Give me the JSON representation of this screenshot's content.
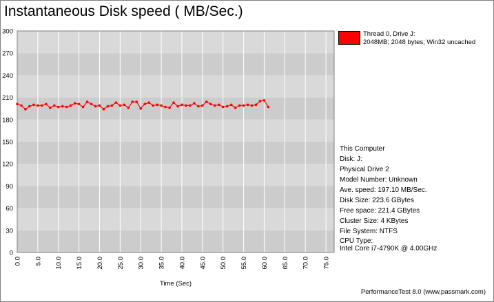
{
  "header": {
    "title": "Instantaneous Disk speed ( MB/Sec.)"
  },
  "legend": {
    "swatch_color": "#ff0000",
    "line1": "Thread 0, Drive J:",
    "line2": "2048MB; 2048 bytes; Win32 uncached"
  },
  "info": {
    "computer": "This Computer",
    "disk": "Disk: J:",
    "physical_drive": "Physical Drive 2",
    "model_number": "Model Number: Unknown",
    "ave_speed": "Ave. speed: 197.10 MB/Sec.",
    "disk_size": "Disk Size: 223.6 GBytes",
    "free_space": "Free space: 221.4 GBytes",
    "cluster_size": "Cluster Size: 4 KBytes",
    "file_system": "File System: NTFS",
    "cpu_type_label": "CPU Type:",
    "cpu_type_value": "Intel Core i7-4790K @ 4.00GHz"
  },
  "footer": {
    "text": "PerformanceTest 8.0 (www.passmark.com)"
  },
  "chart_data": {
    "type": "line",
    "title": "Instantaneous Disk speed ( MB/Sec.)",
    "xlabel": "Time (Sec)",
    "ylabel": "",
    "xlim": [
      0,
      77
    ],
    "ylim": [
      0,
      300
    ],
    "x_ticks": [
      "0.0",
      "5.0",
      "10.0",
      "15.0",
      "20.0",
      "25.0",
      "30.0",
      "35.0",
      "40.0",
      "45.0",
      "50.0",
      "55.0",
      "60.0",
      "65.0",
      "70.0",
      "75.0"
    ],
    "x_tick_values": [
      0,
      5,
      10,
      15,
      20,
      25,
      30,
      35,
      40,
      45,
      50,
      55,
      60,
      65,
      70,
      75
    ],
    "y_ticks": [
      "0",
      "30",
      "60",
      "90",
      "120",
      "150",
      "180",
      "210",
      "240",
      "270",
      "300"
    ],
    "y_tick_values": [
      0,
      30,
      60,
      90,
      120,
      150,
      180,
      210,
      240,
      270,
      300
    ],
    "grid": true,
    "legend_position": "top-right",
    "colors": {
      "plot_band_dark": "#cccccc",
      "plot_band_light": "#d9d9d9",
      "gridline": "#ffffff",
      "series": "#ff0000"
    },
    "series": [
      {
        "name": "Thread 0, Drive J:",
        "color": "#ff0000",
        "x": [
          0,
          1,
          2,
          3,
          4,
          5,
          6,
          7,
          8,
          9,
          10,
          11,
          12,
          13,
          14,
          15,
          16,
          17,
          18,
          19,
          20,
          21,
          22,
          23,
          24,
          25,
          26,
          27,
          28,
          29,
          30,
          31,
          32,
          33,
          34,
          35,
          36,
          37,
          38,
          39,
          40,
          41,
          42,
          43,
          44,
          45,
          46,
          47,
          48,
          49,
          50,
          51,
          52,
          53,
          54,
          55,
          56,
          57,
          58,
          59,
          60,
          61
        ],
        "y": [
          201,
          199,
          194,
          198,
          200,
          199,
          199,
          201,
          196,
          199,
          197,
          198,
          197,
          199,
          202,
          201,
          197,
          204,
          201,
          198,
          199,
          194,
          198,
          199,
          203,
          199,
          200,
          196,
          204,
          204,
          195,
          201,
          203,
          199,
          200,
          199,
          197,
          196,
          203,
          198,
          200,
          199,
          199,
          202,
          198,
          199,
          204,
          201,
          199,
          200,
          197,
          198,
          200,
          196,
          199,
          199,
          200,
          199,
          200,
          205,
          206,
          197
        ]
      }
    ]
  }
}
